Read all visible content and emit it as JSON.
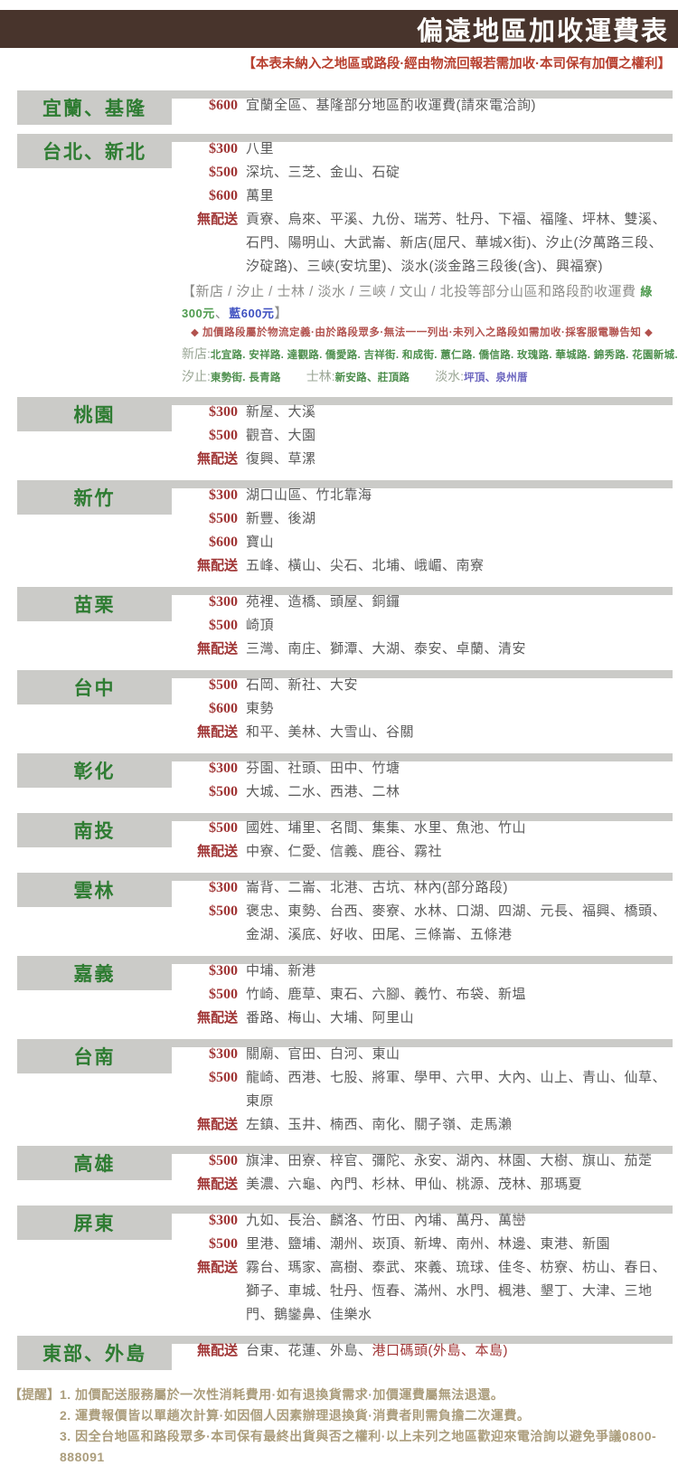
{
  "page": {
    "title": "偏遠地區加收運費表",
    "subtitle": "【本表未納入之地區或路段·經由物流回報若需加收·本司保有加價之權利】"
  },
  "colors": {
    "header_bg": "#48342c",
    "title_text": "#ffffff",
    "subtitle_red": "#b8402f",
    "label_bg": "#cbcbc8",
    "label_green": "#2e7c32",
    "price_red": "#a03636",
    "area_gray": "#5a5a5a",
    "note_gray": "#8f8f8c",
    "tag_green": "#4f9b4f",
    "tag_blue": "#3f51c1",
    "street_green": "#4e8f4e",
    "street_blue": "#6c66bf",
    "disclaimer_red": "#b2524e",
    "footer_tan": "#ab9d7c"
  },
  "sections": [
    {
      "region": "宜蘭、基隆",
      "rows": [
        {
          "fee": "$600",
          "areas": "宜蘭全區、基隆部分地區酌收運費(請來電洽詢)"
        }
      ]
    },
    {
      "region": "台北、新北",
      "rows": [
        {
          "fee": "$300",
          "areas": "八里"
        },
        {
          "fee": "$500",
          "areas": "深坑、三芝、金山、石碇"
        },
        {
          "fee": "$600",
          "areas": "萬里"
        },
        {
          "fee": "無配送",
          "areas": "貢寮、烏來、平溪、九份、瑞芳、牡丹、下福、福隆、坪林、雙溪、石門、陽明山、大武崙、新店(屈尺、華城X街)、汐止(汐萬路三段、汐碇路)、三峽(安坑里)、淡水(淡金路三段後(含)、興福寮)"
        }
      ],
      "notes": {
        "headline": {
          "prefix": "【新店 / 汐止 / 士林 / 淡水 / 三峽 / 文山 / 北投等部分山區和路段酌收運費 ",
          "green": "綠300元",
          "sep": "、",
          "blue": "藍600元",
          "suffix": "】"
        },
        "disclaimer": "◆ 加價路段屬於物流定義·由於路段眾多·無法一一列出·未列入之路段如需加收·採客服電聯告知 ◆",
        "street_lines": [
          [
            {
              "label": "新店:",
              "text": "北宜路. 安祥路. 達觀路. 僑愛路. 吉祥街. 和成街. 蕙仁路. 僑信路. 玫瑰路. 華城路. 錦秀路. 花園新城. 富貴街",
              "color": "green"
            }
          ],
          [
            {
              "label": "汐止:",
              "text": "東勢街. 長青路",
              "color": "green"
            },
            {
              "label": "士林:",
              "text": "新安路、莊頂路",
              "color": "green"
            },
            {
              "label": "淡水:",
              "text": "坪頂、泉州厝",
              "color": "blue"
            }
          ]
        ]
      }
    },
    {
      "region": "桃園",
      "rows": [
        {
          "fee": "$300",
          "areas": "新屋、大溪"
        },
        {
          "fee": "$500",
          "areas": "觀音、大園"
        },
        {
          "fee": "無配送",
          "areas": "復興、草漯"
        }
      ]
    },
    {
      "region": "新竹",
      "rows": [
        {
          "fee": "$300",
          "areas": "湖口山區、竹北靠海"
        },
        {
          "fee": "$500",
          "areas": "新豐、後湖"
        },
        {
          "fee": "$600",
          "areas": "寶山"
        },
        {
          "fee": "無配送",
          "areas": "五峰、橫山、尖石、北埔、峨嵋、南寮"
        }
      ]
    },
    {
      "region": "苗栗",
      "rows": [
        {
          "fee": "$300",
          "areas": "苑裡、造橋、頭屋、銅鑼"
        },
        {
          "fee": "$500",
          "areas": "崎頂"
        },
        {
          "fee": "無配送",
          "areas": "三灣、南庄、獅潭、大湖、泰安、卓蘭、清安"
        }
      ]
    },
    {
      "region": "台中",
      "rows": [
        {
          "fee": "$500",
          "areas": "石岡、新社、大安"
        },
        {
          "fee": "$600",
          "areas": "東勢"
        },
        {
          "fee": "無配送",
          "areas": "和平、美林、大雪山、谷關"
        }
      ]
    },
    {
      "region": "彰化",
      "rows": [
        {
          "fee": "$300",
          "areas": "芬園、社頭、田中、竹塘"
        },
        {
          "fee": "$500",
          "areas": "大城、二水、西港、二林"
        }
      ]
    },
    {
      "region": "南投",
      "rows": [
        {
          "fee": "$500",
          "areas": "國姓、埔里、名間、集集、水里、魚池、竹山"
        },
        {
          "fee": "無配送",
          "areas": "中寮、仁愛、信義、鹿谷、霧社"
        }
      ]
    },
    {
      "region": "雲林",
      "rows": [
        {
          "fee": "$300",
          "areas": "崙背、二崙、北港、古坑、林內(部分路段)"
        },
        {
          "fee": "$500",
          "areas": "褒忠、東勢、台西、麥寮、水林、口湖、四湖、元長、福興、橋頭、金湖、溪底、好收、田尾、三條崙、五條港"
        }
      ]
    },
    {
      "region": "嘉義",
      "rows": [
        {
          "fee": "$300",
          "areas": "中埔、新港"
        },
        {
          "fee": "$500",
          "areas": "竹崎、鹿草、東石、六腳、義竹、布袋、新塭"
        },
        {
          "fee": "無配送",
          "areas": "番路、梅山、大埔、阿里山"
        }
      ]
    },
    {
      "region": "台南",
      "rows": [
        {
          "fee": "$300",
          "areas": "關廟、官田、白河、東山"
        },
        {
          "fee": "$500",
          "areas": "龍崎、西港、七股、將軍、學甲、六甲、大內、山上、青山、仙草、東原"
        },
        {
          "fee": "無配送",
          "areas": "左鎮、玉井、楠西、南化、關子嶺、走馬瀨"
        }
      ]
    },
    {
      "region": "高雄",
      "rows": [
        {
          "fee": "$500",
          "areas": "旗津、田寮、梓官、彌陀、永安、湖內、林園、大樹、旗山、茄萣"
        },
        {
          "fee": "無配送",
          "areas": "美濃、六龜、內門、杉林、甲仙、桃源、茂林、那瑪夏"
        }
      ]
    },
    {
      "region": "屏東",
      "rows": [
        {
          "fee": "$300",
          "areas": "九如、長治、麟洛、竹田、內埔、萬丹、萬巒"
        },
        {
          "fee": "$500",
          "areas": "里港、鹽埔、潮州、崁頂、新埤、南州、林邊、東港、新園"
        },
        {
          "fee": "無配送",
          "areas": "霧台、瑪家、高樹、泰武、來義、琉球、佳冬、枋寮、枋山、春日、獅子、車城、牡丹、恆春、滿州、水門、楓港、墾丁、大津、三地門、鵝鑾鼻、佳樂水"
        }
      ]
    },
    {
      "region": "東部、外島",
      "rows": [
        {
          "fee": "無配送",
          "areas": "台東、花蓮、外島、",
          "areas_red": "港口碼頭(外島、本島)"
        }
      ]
    }
  ],
  "footer": {
    "label": "【提醒】",
    "items": [
      "1. 加價配送服務屬於一次性消耗費用·如有退換貨需求·加價運費屬無法退還。",
      "2. 運費報價皆以單趟次計算·如因個人因素辦理退換貨·消費者則需負擔二次運費。",
      "3. 因全台地區和路段眾多·本司保有最終出貨與否之權利·以上未列之地區歡迎來電洽詢以避免爭議0800-888091"
    ]
  }
}
